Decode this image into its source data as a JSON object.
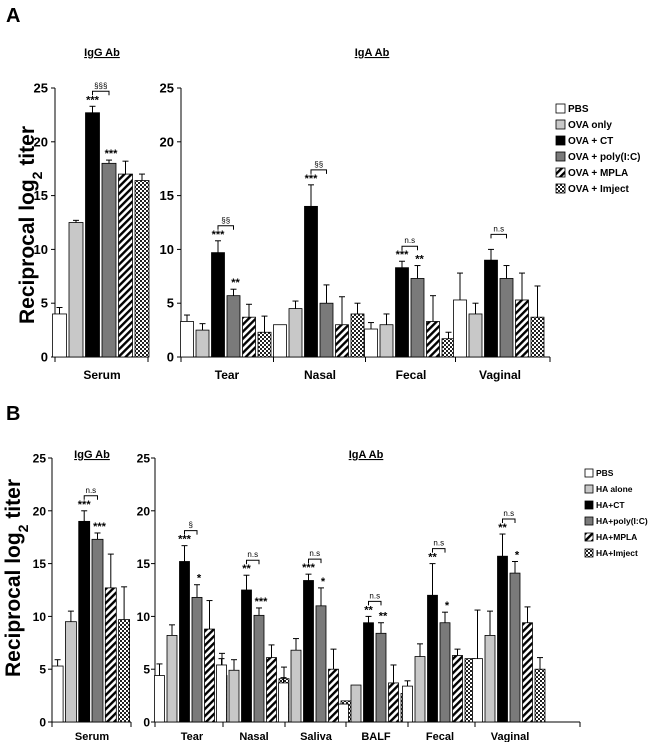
{
  "colors": {
    "PBS": "#ffffff",
    "alone": "#c8c8c8",
    "CT": "#000000",
    "polyIC": "#7a7a7a",
    "MPLA": "hatch",
    "Imject": "checker"
  },
  "chart_data": [
    {
      "panel": "A",
      "type": "bar",
      "ylabel": "Reciprocal log",
      "ylabel_sub": "2",
      "ylabel_suffix": " titer",
      "ylim": [
        0,
        25
      ],
      "yticks": [
        0,
        5,
        10,
        15,
        20,
        25
      ],
      "legend": [
        "PBS",
        "OVA only",
        "OVA + CT",
        "OVA + poly(I:C)",
        "OVA + MPLA",
        "OVA + Imject"
      ],
      "groups": [
        {
          "title": "IgG Ab",
          "categories": [
            "Serum"
          ],
          "values": [
            [
              4.0,
              12.5,
              22.7,
              18.0,
              17.0,
              16.4
            ]
          ],
          "errors": [
            [
              0.6,
              0.2,
              0.6,
              0.3,
              1.2,
              0.6
            ]
          ],
          "sig": [
            [
              "",
              "",
              "***",
              "***",
              "",
              ""
            ]
          ],
          "comparisons": [
            {
              "label": "§§§",
              "from": 2,
              "to": 3
            }
          ]
        },
        {
          "title": "IgA Ab",
          "categories": [
            "Tear",
            "Nasal",
            "Fecal",
            "Vaginal"
          ],
          "values": [
            [
              3.3,
              2.5,
              9.7,
              5.7,
              3.7,
              2.3
            ],
            [
              3.0,
              4.5,
              14.0,
              5.0,
              3.0,
              4.0
            ],
            [
              2.6,
              3.0,
              8.3,
              7.3,
              3.3,
              1.7
            ],
            [
              5.3,
              4.0,
              9.0,
              7.3,
              5.3,
              3.7
            ]
          ],
          "errors": [
            [
              0.6,
              0.6,
              1.1,
              0.6,
              1.2,
              1.5
            ],
            [
              0.0,
              0.7,
              2.0,
              1.7,
              2.6,
              1.0
            ],
            [
              0.6,
              1.0,
              0.6,
              1.2,
              2.4,
              0.6
            ],
            [
              2.5,
              1.0,
              1.0,
              1.2,
              2.5,
              2.9
            ]
          ],
          "sig": [
            [
              "",
              "",
              "***",
              "**",
              "",
              ""
            ],
            [
              "",
              "",
              "***",
              "",
              "",
              ""
            ],
            [
              "",
              "",
              "***",
              "**",
              "",
              ""
            ],
            [
              "",
              "",
              "",
              "",
              "",
              ""
            ]
          ],
          "comparisons": [
            {
              "cat": 0,
              "label": "§§",
              "from": 2,
              "to": 3
            },
            {
              "cat": 1,
              "label": "§§",
              "from": 2,
              "to": 3
            },
            {
              "cat": 2,
              "label": "n.s",
              "from": 2,
              "to": 3
            },
            {
              "cat": 3,
              "label": "n.s",
              "from": 2,
              "to": 3
            }
          ]
        }
      ]
    },
    {
      "panel": "B",
      "type": "bar",
      "ylabel": "Reciprocal log",
      "ylabel_sub": "2",
      "ylabel_suffix": " titer",
      "ylim": [
        0,
        25
      ],
      "yticks": [
        0,
        5,
        10,
        15,
        20,
        25
      ],
      "legend": [
        "PBS",
        "HA alone",
        "HA+CT",
        "HA+poly(I:C)",
        "HA+MPLA",
        "HA+Imject"
      ],
      "groups": [
        {
          "title": "IgG Ab",
          "categories": [
            "Serum"
          ],
          "values": [
            [
              5.3,
              9.5,
              19.0,
              17.3,
              12.7,
              9.7
            ]
          ],
          "errors": [
            [
              0.6,
              1.0,
              1.0,
              0.6,
              3.2,
              3.1
            ]
          ],
          "sig": [
            [
              "",
              "",
              "***",
              "***",
              "",
              ""
            ]
          ],
          "comparisons": [
            {
              "label": "n.s",
              "from": 2,
              "to": 3
            }
          ]
        },
        {
          "title": "IgA Ab",
          "categories": [
            "Tear",
            "Nasal",
            "Saliva",
            "BALF",
            "Fecal",
            "Vaginal"
          ],
          "values": [
            [
              4.4,
              8.2,
              15.2,
              11.8,
              8.8,
              4.4
            ],
            [
              5.4,
              4.9,
              12.5,
              10.1,
              6.1,
              4.1
            ],
            [
              3.7,
              6.8,
              13.4,
              11.0,
              5.0,
              2.0
            ],
            [
              1.7,
              3.5,
              9.4,
              8.4,
              3.7,
              2.7
            ],
            [
              3.4,
              6.2,
              12.0,
              9.4,
              6.3,
              6.0
            ],
            [
              6.0,
              8.2,
              15.7,
              14.1,
              9.4,
              5.0
            ]
          ],
          "errors": [
            [
              1.1,
              1.0,
              1.5,
              1.2,
              2.7,
              2.1
            ],
            [
              0.6,
              1.0,
              1.4,
              0.7,
              1.2,
              1.1
            ],
            [
              0.5,
              1.1,
              0.6,
              1.7,
              1.9,
              0.0
            ],
            [
              0.0,
              0.0,
              0.6,
              1.0,
              1.7,
              0.0
            ],
            [
              0.5,
              1.2,
              3.0,
              1.0,
              0.6,
              0.0
            ],
            [
              4.6,
              2.3,
              2.1,
              1.1,
              1.5,
              1.1
            ]
          ],
          "sig": [
            [
              "",
              "",
              "***",
              "*",
              "",
              ""
            ],
            [
              "",
              "",
              "**",
              "***",
              "",
              ""
            ],
            [
              "",
              "",
              "***",
              "*",
              "",
              ""
            ],
            [
              "",
              "",
              "**",
              "**",
              "",
              ""
            ],
            [
              "",
              "",
              "**",
              "*",
              "",
              ""
            ],
            [
              "",
              "",
              "**",
              "*",
              "",
              ""
            ]
          ],
          "comparisons": [
            {
              "cat": 0,
              "label": "§",
              "from": 2,
              "to": 3
            },
            {
              "cat": 1,
              "label": "n.s",
              "from": 2,
              "to": 3
            },
            {
              "cat": 2,
              "label": "n.s",
              "from": 2,
              "to": 3
            },
            {
              "cat": 3,
              "label": "n.s",
              "from": 2,
              "to": 3
            },
            {
              "cat": 4,
              "label": "n.s",
              "from": 2,
              "to": 3
            },
            {
              "cat": 5,
              "label": "n.s",
              "from": 2,
              "to": 3
            }
          ]
        }
      ]
    }
  ]
}
